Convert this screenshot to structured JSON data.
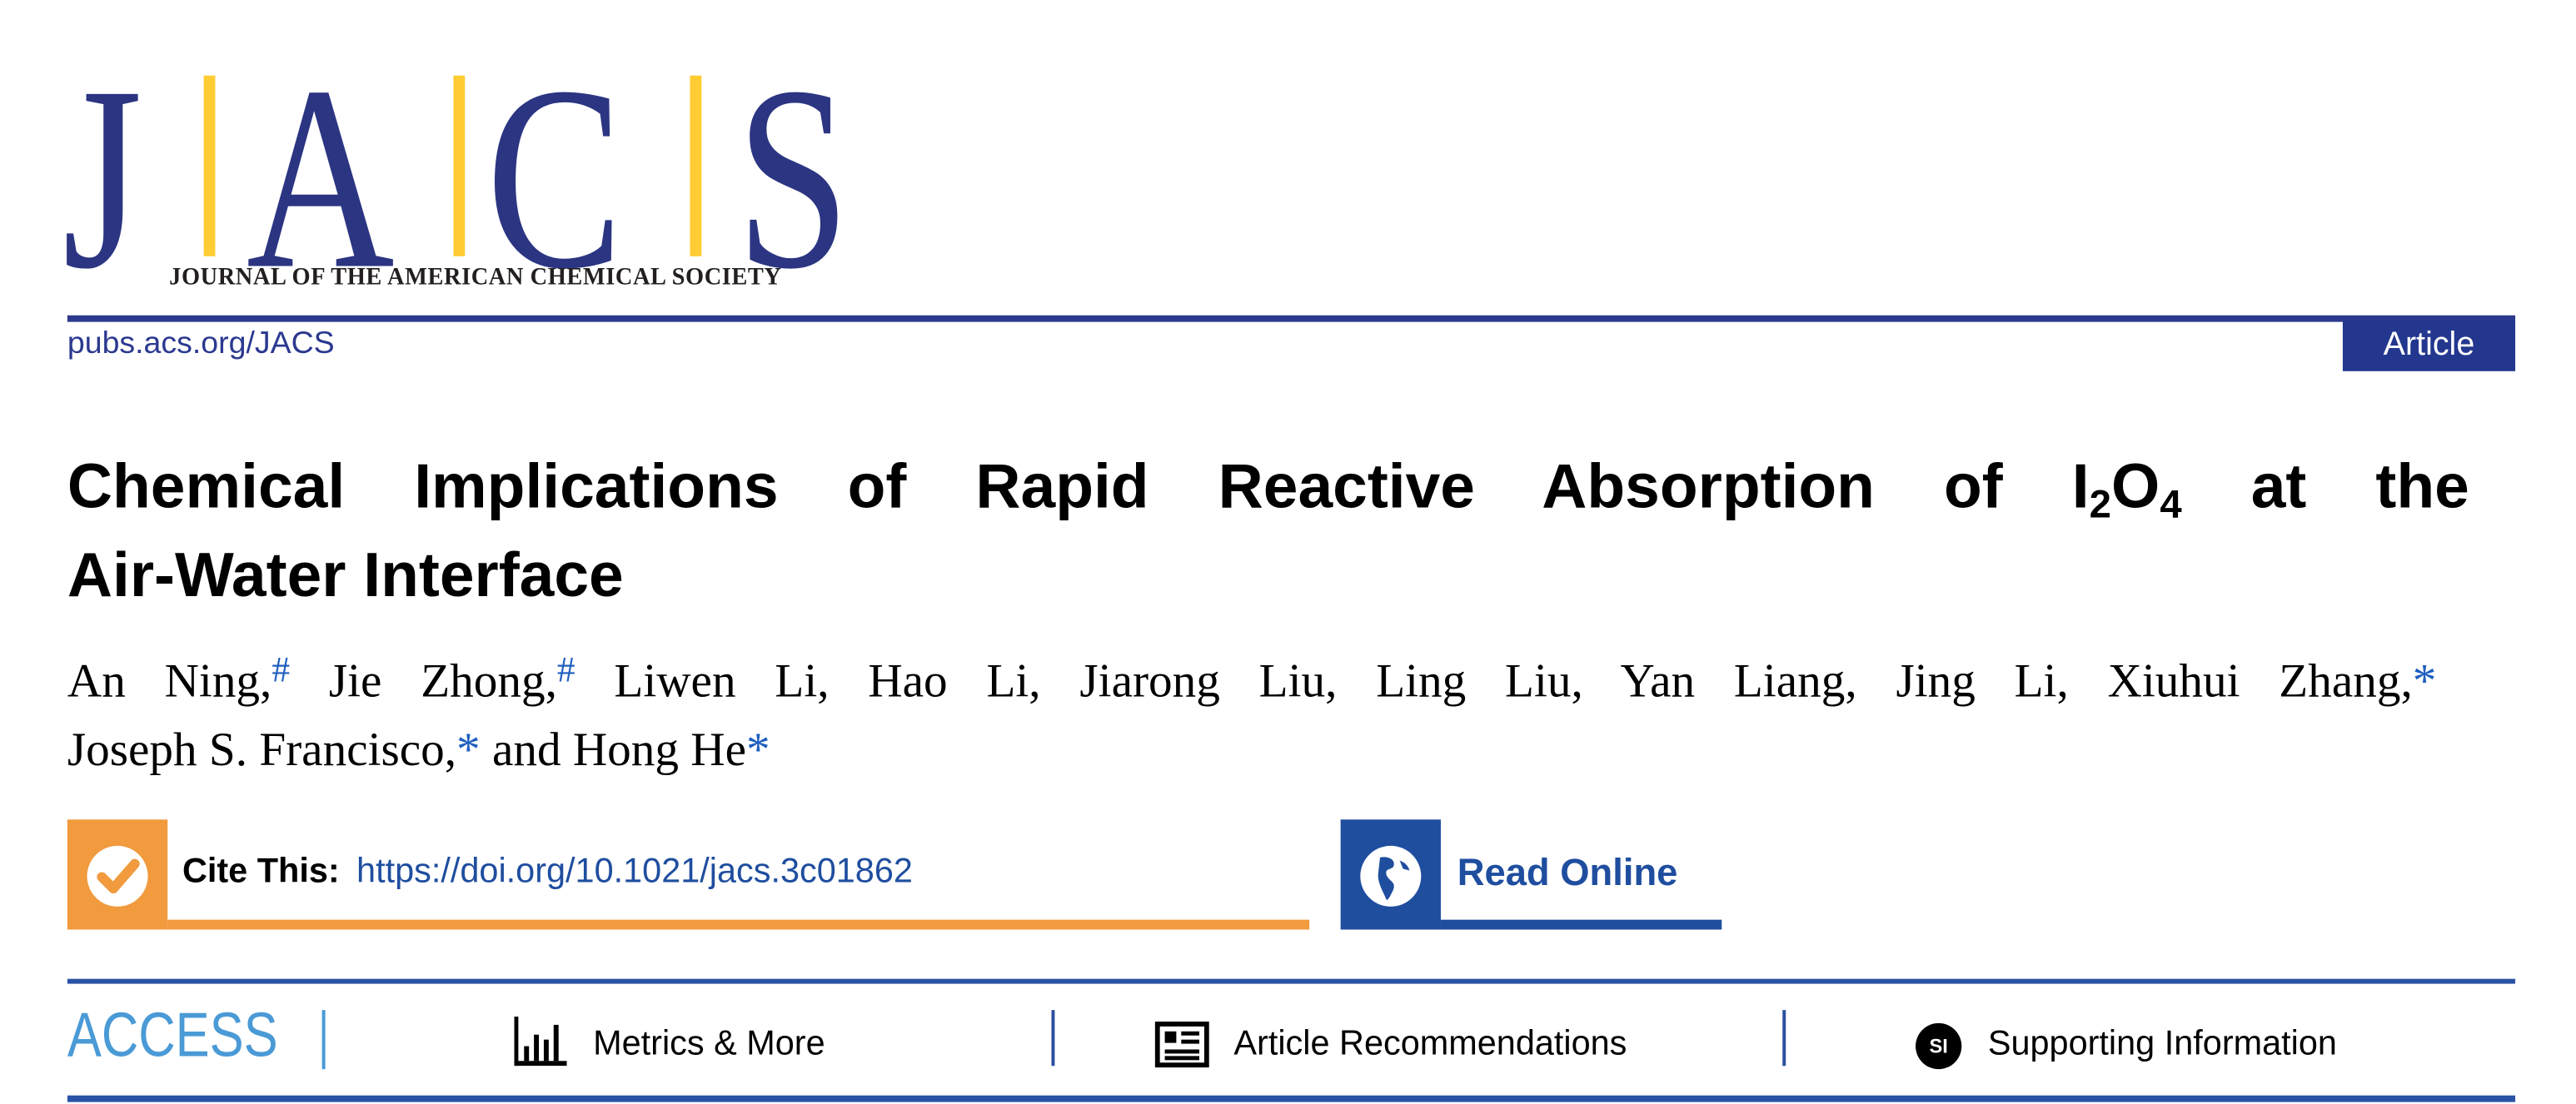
{
  "header": {
    "logo": {
      "letters": [
        "J",
        "A",
        "C",
        "S"
      ],
      "subtitle": "JOURNAL OF THE AMERICAN CHEMICAL SOCIETY"
    },
    "site_link": "pubs.acs.org/JACS",
    "article_type": "Article"
  },
  "article": {
    "title_line1_pre": "Chemical Implications of Rapid Reactive Absorption of I",
    "title_sub1": "2",
    "title_mid": "O",
    "title_sub2": "4",
    "title_line1_post": " at the",
    "title_line2": "Air-Water Interface",
    "authors_line1": [
      {
        "name": "An Ning,",
        "mark": "#"
      },
      {
        "name": " Jie Zhong,",
        "mark": "#"
      },
      {
        "name": " Liwen Li, Hao Li, Jiarong Liu, Ling Liu, Yan Liang, Jing Li, Xiuhui Zhang,",
        "mark": "*"
      }
    ],
    "authors_line2": [
      {
        "name": "Joseph S. Francisco,",
        "mark": "*"
      },
      {
        "name": " and Hong He",
        "mark": "*"
      }
    ]
  },
  "cite": {
    "label": "Cite This:",
    "doi": "https://doi.org/10.1021/jacs.3c01862",
    "icon": "checkmark-icon"
  },
  "read_online": {
    "label": "Read Online",
    "icon": "globe-icon"
  },
  "access_bar": {
    "access_label": "ACCESS",
    "items": [
      {
        "label": "Metrics & More",
        "icon": "bar-chart-icon"
      },
      {
        "label": "Article Recommendations",
        "icon": "article-list-icon"
      },
      {
        "label": "Supporting Information",
        "icon": "si-icon",
        "icon_text": "SI"
      }
    ]
  },
  "colors": {
    "brand_blue": "#2b3582",
    "logo_yellow": "#ffcc33",
    "cite_orange": "#f19a3e",
    "read_blue": "#1f4e9f",
    "access_blue": "#4a9ad6"
  }
}
